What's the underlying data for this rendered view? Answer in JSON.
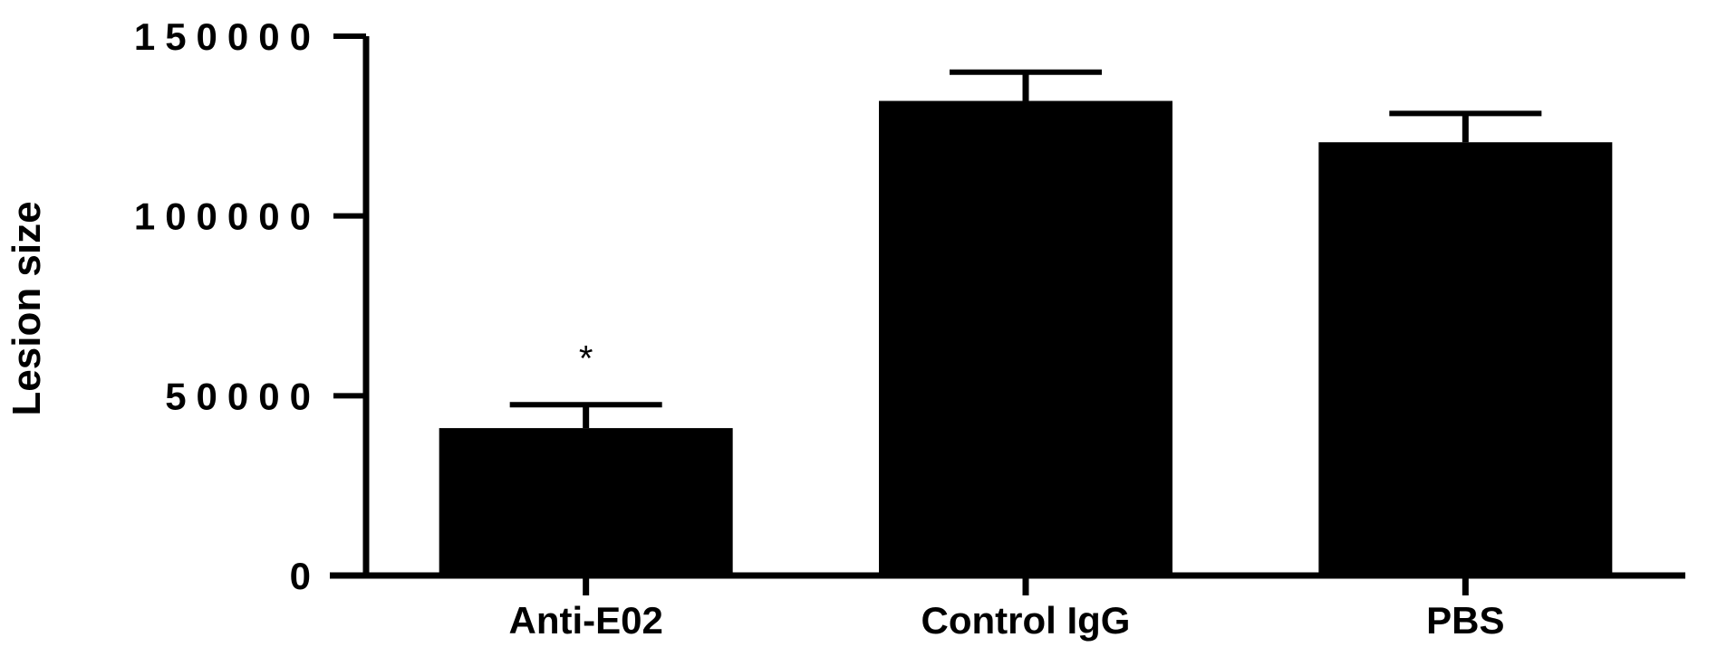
{
  "chart_data": {
    "type": "bar",
    "title": "",
    "xlabel": "",
    "ylabel": "Lesion size",
    "categories": [
      "Anti-E02",
      "Control IgG",
      "PBS"
    ],
    "values": [
      41000,
      132000,
      120500
    ],
    "error_upper": [
      47500,
      140000,
      128500
    ],
    "annotations": [
      "*",
      "",
      ""
    ],
    "ylim": [
      0,
      150000
    ],
    "yticks": [
      0,
      50000,
      100000,
      150000
    ],
    "ytick_labels": [
      "0",
      "50000",
      "100000",
      "150000"
    ],
    "bar_color": "#000000",
    "grid": false,
    "legend": "none"
  }
}
